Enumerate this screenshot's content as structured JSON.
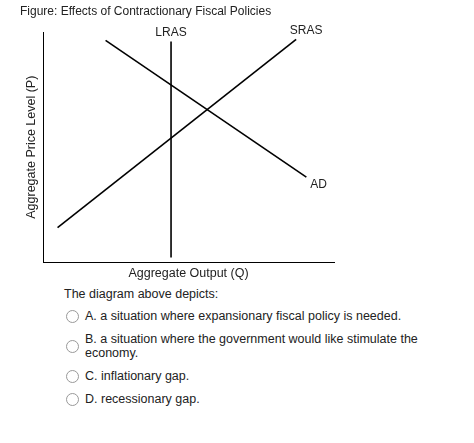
{
  "chart_data": {
    "type": "line",
    "title": "Figure: Effects of Contractionary Fiscal Policies",
    "x_label": "Aggregate Output (Q)",
    "y_label": "Aggregate Price Level (P)",
    "xlim": [
      0,
      10
    ],
    "ylim": [
      0,
      10
    ],
    "grid": false,
    "tick_labels": false,
    "series": [
      {
        "name": "LRAS",
        "color": "#000000",
        "x": [
          4.4,
          4.4
        ],
        "values": [
          0.2,
          9.6
        ]
      },
      {
        "name": "SRAS",
        "color": "#000000",
        "x": [
          0.5,
          8.7
        ],
        "values": [
          1.5,
          9.7
        ]
      },
      {
        "name": "AD",
        "color": "#000000",
        "x": [
          2.15,
          9.05
        ],
        "values": [
          9.65,
          3.7
        ]
      }
    ]
  },
  "question": {
    "stem": "The diagram above depicts:",
    "options": [
      "A. a situation where expansionary fiscal policy is needed.",
      "B. a situation where the government would like stimulate the economy.",
      "C. inflationary gap.",
      "D. recessionary gap."
    ]
  }
}
